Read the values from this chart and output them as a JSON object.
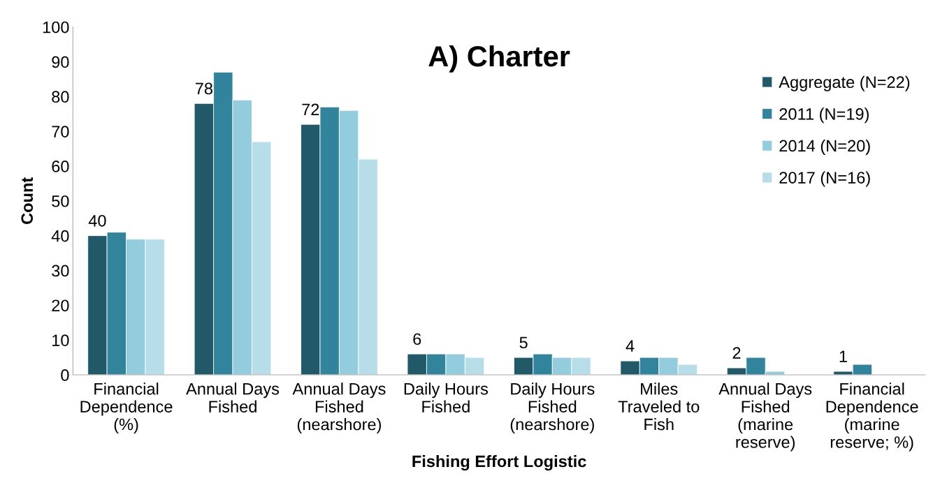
{
  "chart_data": {
    "type": "bar",
    "title": "A) Charter",
    "xlabel": "Fishing Effort Logistic",
    "ylabel": "Count",
    "categories": [
      "Financial\nDependence\n(%)",
      "Annual Days\nFished",
      "Annual Days\nFished\n(nearshore)",
      "Daily Hours\nFished",
      "Daily Hours\nFished\n(nearshore)",
      "Miles\nTraveled to\nFish",
      "Annual Days\nFished\n(marine\nreserve)",
      "Financial\nDependence\n(marine\nreserve; %)"
    ],
    "series": [
      {
        "name": "Aggregate (N=22)",
        "color": "#215968",
        "values": [
          40,
          78,
          72,
          6,
          5,
          4,
          2,
          1
        ],
        "value_labels": [
          "40",
          "78",
          "72",
          "6",
          "5",
          "4",
          "2",
          "1"
        ]
      },
      {
        "name": "2011 (N=19)",
        "color": "#31849b",
        "values": [
          41,
          87,
          77,
          6,
          6,
          5,
          5,
          3
        ]
      },
      {
        "name": "2014 (N=20)",
        "color": "#93cddd",
        "values": [
          39,
          79,
          76,
          6,
          5,
          5,
          1,
          null
        ]
      },
      {
        "name": "2017 (N=16)",
        "color": "#b7dee8",
        "values": [
          39,
          67,
          62,
          5,
          5,
          3,
          null,
          null
        ]
      }
    ],
    "ylim": [
      0,
      100
    ],
    "yticks": [
      0,
      10,
      20,
      30,
      40,
      50,
      60,
      70,
      80,
      90,
      100
    ],
    "grid": false,
    "legend": "right"
  }
}
